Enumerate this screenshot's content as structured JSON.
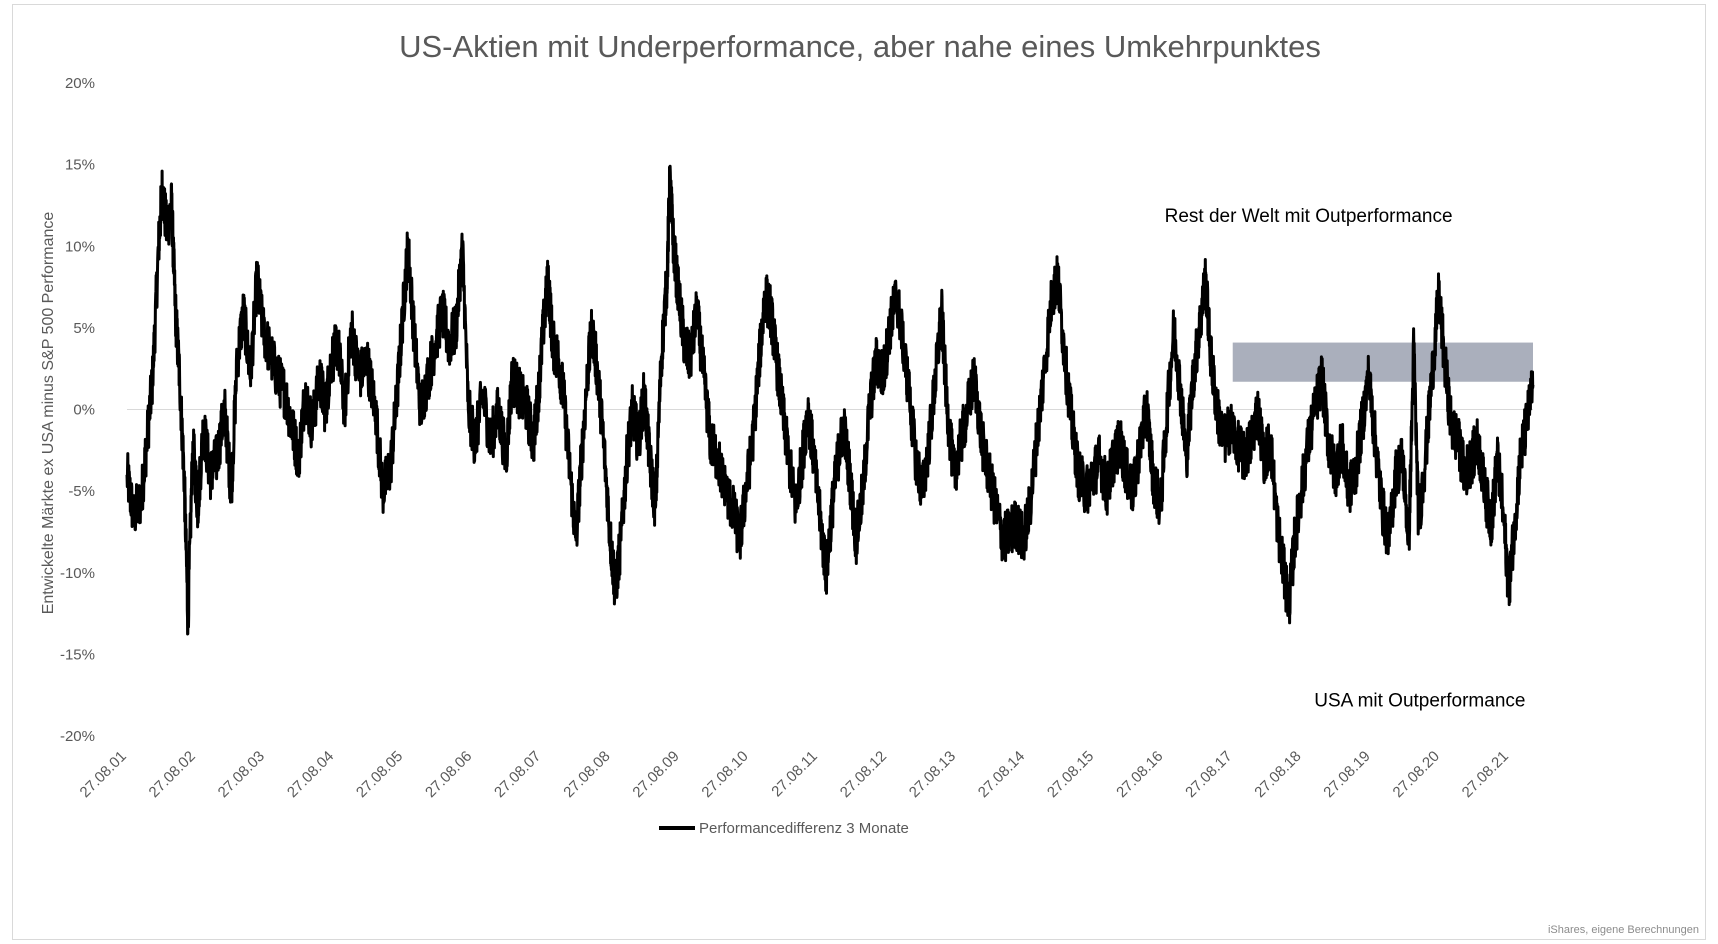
{
  "chart_data": {
    "type": "line",
    "title": "US-Aktien mit Underperformance, aber nahe eines Umkehrpunktes",
    "ylabel": "Entwickelte Märkte ex USA minus S&P 500 Performance",
    "xlabel": "",
    "ylim": [
      -0.2,
      0.2
    ],
    "y_ticks": [
      {
        "value": 0.2,
        "label": "20%"
      },
      {
        "value": 0.15,
        "label": "15%"
      },
      {
        "value": 0.1,
        "label": "10%"
      },
      {
        "value": 0.05,
        "label": "5%"
      },
      {
        "value": 0.0,
        "label": "0%"
      },
      {
        "value": -0.05,
        "label": "-5%"
      },
      {
        "value": -0.1,
        "label": "-10%"
      },
      {
        "value": -0.15,
        "label": "-15%"
      },
      {
        "value": -0.2,
        "label": "-20%"
      }
    ],
    "x_range": [
      "2001-08-27",
      "2021-12-31"
    ],
    "x_ticks": [
      {
        "date": "2001-08-27",
        "label": "27.08.01"
      },
      {
        "date": "2002-08-27",
        "label": "27.08.02"
      },
      {
        "date": "2003-08-27",
        "label": "27.08.03"
      },
      {
        "date": "2004-08-27",
        "label": "27.08.04"
      },
      {
        "date": "2005-08-27",
        "label": "27.08.05"
      },
      {
        "date": "2006-08-27",
        "label": "27.08.06"
      },
      {
        "date": "2007-08-27",
        "label": "27.08.07"
      },
      {
        "date": "2008-08-27",
        "label": "27.08.08"
      },
      {
        "date": "2009-08-27",
        "label": "27.08.09"
      },
      {
        "date": "2010-08-27",
        "label": "27.08.10"
      },
      {
        "date": "2011-08-27",
        "label": "27.08.11"
      },
      {
        "date": "2012-08-27",
        "label": "27.08.12"
      },
      {
        "date": "2013-08-27",
        "label": "27.08.13"
      },
      {
        "date": "2014-08-27",
        "label": "27.08.14"
      },
      {
        "date": "2015-08-27",
        "label": "27.08.15"
      },
      {
        "date": "2016-08-27",
        "label": "27.08.16"
      },
      {
        "date": "2017-08-27",
        "label": "27.08.17"
      },
      {
        "date": "2018-08-27",
        "label": "27.08.18"
      },
      {
        "date": "2019-08-27",
        "label": "27.08.19"
      },
      {
        "date": "2020-08-27",
        "label": "27.08.20"
      },
      {
        "date": "2021-08-27",
        "label": "27.08.21"
      }
    ],
    "series": [
      {
        "name": "Performancedifferenz 3 Monate",
        "color": "#000000",
        "points": [
          [
            "2001-08-27",
            -0.04
          ],
          [
            "2001-10-01",
            -0.065
          ],
          [
            "2001-11-10",
            -0.055
          ],
          [
            "2001-12-10",
            -0.02
          ],
          [
            "2002-01-10",
            0.02
          ],
          [
            "2002-02-10",
            0.1
          ],
          [
            "2002-03-01",
            0.135
          ],
          [
            "2002-03-25",
            0.11
          ],
          [
            "2002-04-20",
            0.125
          ],
          [
            "2002-05-10",
            0.06
          ],
          [
            "2002-06-01",
            0.02
          ],
          [
            "2002-06-25",
            -0.04
          ],
          [
            "2002-07-15",
            -0.13
          ],
          [
            "2002-08-10",
            -0.02
          ],
          [
            "2002-09-05",
            -0.06
          ],
          [
            "2002-10-05",
            -0.01
          ],
          [
            "2002-11-10",
            -0.04
          ],
          [
            "2002-12-15",
            -0.03
          ],
          [
            "2003-01-25",
            0.0
          ],
          [
            "2003-03-01",
            -0.05
          ],
          [
            "2003-04-01",
            0.03
          ],
          [
            "2003-05-05",
            0.06
          ],
          [
            "2003-06-10",
            0.02
          ],
          [
            "2003-07-15",
            0.08
          ],
          [
            "2003-08-15",
            0.05
          ],
          [
            "2003-09-20",
            0.035
          ],
          [
            "2003-11-01",
            0.02
          ],
          [
            "2003-12-10",
            0.01
          ],
          [
            "2004-01-15",
            -0.01
          ],
          [
            "2004-02-20",
            -0.03
          ],
          [
            "2004-03-25",
            0.01
          ],
          [
            "2004-05-01",
            -0.01
          ],
          [
            "2004-06-10",
            0.02
          ],
          [
            "2004-07-10",
            0.0
          ],
          [
            "2004-08-10",
            0.03
          ],
          [
            "2004-09-15",
            0.04
          ],
          [
            "2004-10-20",
            0.0
          ],
          [
            "2004-11-25",
            0.05
          ],
          [
            "2005-01-05",
            0.02
          ],
          [
            "2005-02-15",
            0.03
          ],
          [
            "2005-04-01",
            0.0
          ],
          [
            "2005-05-10",
            -0.05
          ],
          [
            "2005-06-20",
            -0.035
          ],
          [
            "2005-07-25",
            0.01
          ],
          [
            "2005-08-25",
            0.06
          ],
          [
            "2005-09-20",
            0.1
          ],
          [
            "2005-10-20",
            0.05
          ],
          [
            "2005-11-25",
            0.0
          ],
          [
            "2006-01-05",
            0.02
          ],
          [
            "2006-02-10",
            0.04
          ],
          [
            "2006-03-20",
            0.06
          ],
          [
            "2006-04-25",
            0.04
          ],
          [
            "2006-06-01",
            0.05
          ],
          [
            "2006-07-05",
            0.1
          ],
          [
            "2006-08-05",
            0.0
          ],
          [
            "2006-09-10",
            -0.02
          ],
          [
            "2006-10-20",
            0.01
          ],
          [
            "2006-12-01",
            -0.02
          ],
          [
            "2007-01-10",
            0.0
          ],
          [
            "2007-02-20",
            -0.03
          ],
          [
            "2007-03-25",
            0.02
          ],
          [
            "2007-05-01",
            0.01
          ],
          [
            "2007-06-10",
            0.0
          ],
          [
            "2007-07-15",
            -0.02
          ],
          [
            "2007-08-10",
            0.01
          ],
          [
            "2007-09-05",
            0.05
          ],
          [
            "2007-10-01",
            0.08
          ],
          [
            "2007-10-25",
            0.04
          ],
          [
            "2007-11-25",
            0.03
          ],
          [
            "2007-12-20",
            0.01
          ],
          [
            "2008-01-25",
            -0.04
          ],
          [
            "2008-02-25",
            -0.08
          ],
          [
            "2008-03-25",
            -0.03
          ],
          [
            "2008-04-25",
            0.02
          ],
          [
            "2008-05-20",
            0.05
          ],
          [
            "2008-06-20",
            0.02
          ],
          [
            "2008-07-20",
            -0.02
          ],
          [
            "2008-08-25",
            -0.08
          ],
          [
            "2008-09-20",
            -0.11
          ],
          [
            "2008-10-20",
            -0.08
          ],
          [
            "2008-11-20",
            -0.03
          ],
          [
            "2008-12-20",
            0.0
          ],
          [
            "2009-01-20",
            -0.02
          ],
          [
            "2009-02-20",
            0.01
          ],
          [
            "2009-03-20",
            -0.03
          ],
          [
            "2009-04-20",
            -0.06
          ],
          [
            "2009-05-20",
            0.03
          ],
          [
            "2009-06-20",
            0.08
          ],
          [
            "2009-07-05",
            0.14
          ],
          [
            "2009-07-25",
            0.1
          ],
          [
            "2009-08-20",
            0.07
          ],
          [
            "2009-09-20",
            0.04
          ],
          [
            "2009-10-20",
            0.03
          ],
          [
            "2009-11-25",
            0.06
          ],
          [
            "2010-01-01",
            0.02
          ],
          [
            "2010-02-05",
            -0.02
          ],
          [
            "2010-03-15",
            -0.03
          ],
          [
            "2010-04-25",
            -0.05
          ],
          [
            "2010-06-01",
            -0.06
          ],
          [
            "2010-07-10",
            -0.08
          ],
          [
            "2010-08-10",
            -0.05
          ],
          [
            "2010-09-15",
            -0.02
          ],
          [
            "2010-10-20",
            0.03
          ],
          [
            "2010-11-20",
            0.07
          ],
          [
            "2010-12-20",
            0.06
          ],
          [
            "2011-01-20",
            0.03
          ],
          [
            "2011-02-20",
            0.0
          ],
          [
            "2011-03-25",
            -0.03
          ],
          [
            "2011-05-01",
            -0.06
          ],
          [
            "2011-06-05",
            -0.03
          ],
          [
            "2011-07-05",
            0.0
          ],
          [
            "2011-08-05",
            -0.03
          ],
          [
            "2011-09-10",
            -0.07
          ],
          [
            "2011-10-10",
            -0.1
          ],
          [
            "2011-11-10",
            -0.06
          ],
          [
            "2011-12-10",
            -0.03
          ],
          [
            "2012-01-10",
            -0.01
          ],
          [
            "2012-02-10",
            -0.04
          ],
          [
            "2012-03-15",
            -0.08
          ],
          [
            "2012-04-20",
            -0.05
          ],
          [
            "2012-05-25",
            0.0
          ],
          [
            "2012-07-01",
            0.03
          ],
          [
            "2012-08-05",
            0.02
          ],
          [
            "2012-09-10",
            0.05
          ],
          [
            "2012-10-15",
            0.07
          ],
          [
            "2012-11-20",
            0.04
          ],
          [
            "2012-12-20",
            0.01
          ],
          [
            "2013-01-25",
            -0.03
          ],
          [
            "2013-03-01",
            -0.05
          ],
          [
            "2013-04-05",
            -0.02
          ],
          [
            "2013-05-10",
            0.02
          ],
          [
            "2013-06-10",
            0.06
          ],
          [
            "2013-07-10",
            0.0
          ],
          [
            "2013-08-15",
            -0.04
          ],
          [
            "2013-09-20",
            -0.02
          ],
          [
            "2013-10-25",
            0.0
          ],
          [
            "2013-12-01",
            0.02
          ],
          [
            "2014-01-10",
            -0.02
          ],
          [
            "2014-02-15",
            -0.04
          ],
          [
            "2014-03-25",
            -0.06
          ],
          [
            "2014-05-01",
            -0.08
          ],
          [
            "2014-06-05",
            -0.075
          ],
          [
            "2014-07-10",
            -0.07
          ],
          [
            "2014-08-15",
            -0.08
          ],
          [
            "2014-09-20",
            -0.06
          ],
          [
            "2014-10-25",
            -0.02
          ],
          [
            "2014-12-01",
            0.02
          ],
          [
            "2015-01-15",
            0.07
          ],
          [
            "2015-02-15",
            0.08
          ],
          [
            "2015-03-25",
            0.03
          ],
          [
            "2015-05-01",
            -0.01
          ],
          [
            "2015-06-05",
            -0.04
          ],
          [
            "2015-07-15",
            -0.05
          ],
          [
            "2015-08-20",
            -0.04
          ],
          [
            "2015-09-25",
            -0.03
          ],
          [
            "2015-11-01",
            -0.05
          ],
          [
            "2015-12-05",
            -0.03
          ],
          [
            "2016-01-10",
            -0.02
          ],
          [
            "2016-02-15",
            -0.04
          ],
          [
            "2016-03-20",
            -0.05
          ],
          [
            "2016-04-25",
            -0.02
          ],
          [
            "2016-05-30",
            0.0
          ],
          [
            "2016-07-01",
            -0.04
          ],
          [
            "2016-08-10",
            -0.06
          ],
          [
            "2016-09-15",
            0.0
          ],
          [
            "2016-10-20",
            0.05
          ],
          [
            "2016-11-25",
            0.01
          ],
          [
            "2016-12-25",
            -0.03
          ],
          [
            "2017-01-30",
            0.02
          ],
          [
            "2017-03-05",
            0.05
          ],
          [
            "2017-04-05",
            0.08
          ],
          [
            "2017-05-05",
            0.03
          ],
          [
            "2017-06-05",
            0.0
          ],
          [
            "2017-07-10",
            -0.02
          ],
          [
            "2017-08-15",
            -0.01
          ],
          [
            "2017-09-20",
            -0.02
          ],
          [
            "2017-10-25",
            -0.03
          ],
          [
            "2017-12-01",
            -0.02
          ],
          [
            "2018-01-05",
            0.0
          ],
          [
            "2018-02-10",
            -0.03
          ],
          [
            "2018-03-15",
            -0.02
          ],
          [
            "2018-04-20",
            -0.07
          ],
          [
            "2018-05-25",
            -0.1
          ],
          [
            "2018-06-20",
            -0.12
          ],
          [
            "2018-07-20",
            -0.08
          ],
          [
            "2018-08-25",
            -0.05
          ],
          [
            "2018-10-01",
            -0.02
          ],
          [
            "2018-11-05",
            0.0
          ],
          [
            "2018-12-10",
            0.02
          ],
          [
            "2019-01-15",
            -0.02
          ],
          [
            "2019-02-20",
            -0.04
          ],
          [
            "2019-03-25",
            -0.02
          ],
          [
            "2019-05-01",
            -0.05
          ],
          [
            "2019-06-05",
            -0.04
          ],
          [
            "2019-07-10",
            -0.01
          ],
          [
            "2019-08-15",
            0.02
          ],
          [
            "2019-09-20",
            -0.02
          ],
          [
            "2019-10-25",
            -0.06
          ],
          [
            "2019-12-01",
            -0.08
          ],
          [
            "2020-01-05",
            -0.04
          ],
          [
            "2020-02-10",
            -0.03
          ],
          [
            "2020-03-15",
            -0.08
          ],
          [
            "2020-04-10",
            0.04
          ],
          [
            "2020-05-05",
            -0.07
          ],
          [
            "2020-06-10",
            -0.03
          ],
          [
            "2020-07-15",
            0.02
          ],
          [
            "2020-08-20",
            0.07
          ],
          [
            "2020-09-20",
            0.03
          ],
          [
            "2020-10-25",
            -0.01
          ],
          [
            "2020-12-01",
            -0.02
          ],
          [
            "2021-01-05",
            -0.04
          ],
          [
            "2021-02-10",
            -0.03
          ],
          [
            "2021-03-15",
            -0.02
          ],
          [
            "2021-04-20",
            -0.05
          ],
          [
            "2021-05-25",
            -0.07
          ],
          [
            "2021-06-25",
            -0.03
          ],
          [
            "2021-07-25",
            -0.06
          ],
          [
            "2021-08-25",
            -0.11
          ],
          [
            "2021-09-25",
            -0.07
          ],
          [
            "2021-10-25",
            -0.03
          ],
          [
            "2021-11-25",
            -0.01
          ],
          [
            "2021-12-31",
            0.015
          ]
        ]
      }
    ],
    "highlight_band": {
      "x_start": "2017-08-27",
      "x_end": "2021-12-31",
      "y_start": 0.017,
      "y_end": 0.041,
      "color": "#a5abb8"
    },
    "annotations": [
      {
        "text": "Rest der Welt mit Outperformance",
        "x": "2016-09-01",
        "y": 0.115
      },
      {
        "text": "USA mit Outperformance",
        "x": "2018-11-01",
        "y": -0.182
      }
    ],
    "zero_line": true,
    "grid": false,
    "legend": {
      "position": "bottom-center",
      "label": "Performancedifferenz 3 Monate"
    },
    "source": "iShares, eigene Berechnungen"
  },
  "colors": {
    "line": "#000000",
    "axis_text": "#595959",
    "zero_line": "#d9d9d9",
    "band": "#a5abb8",
    "frame": "#d9d9d9"
  }
}
